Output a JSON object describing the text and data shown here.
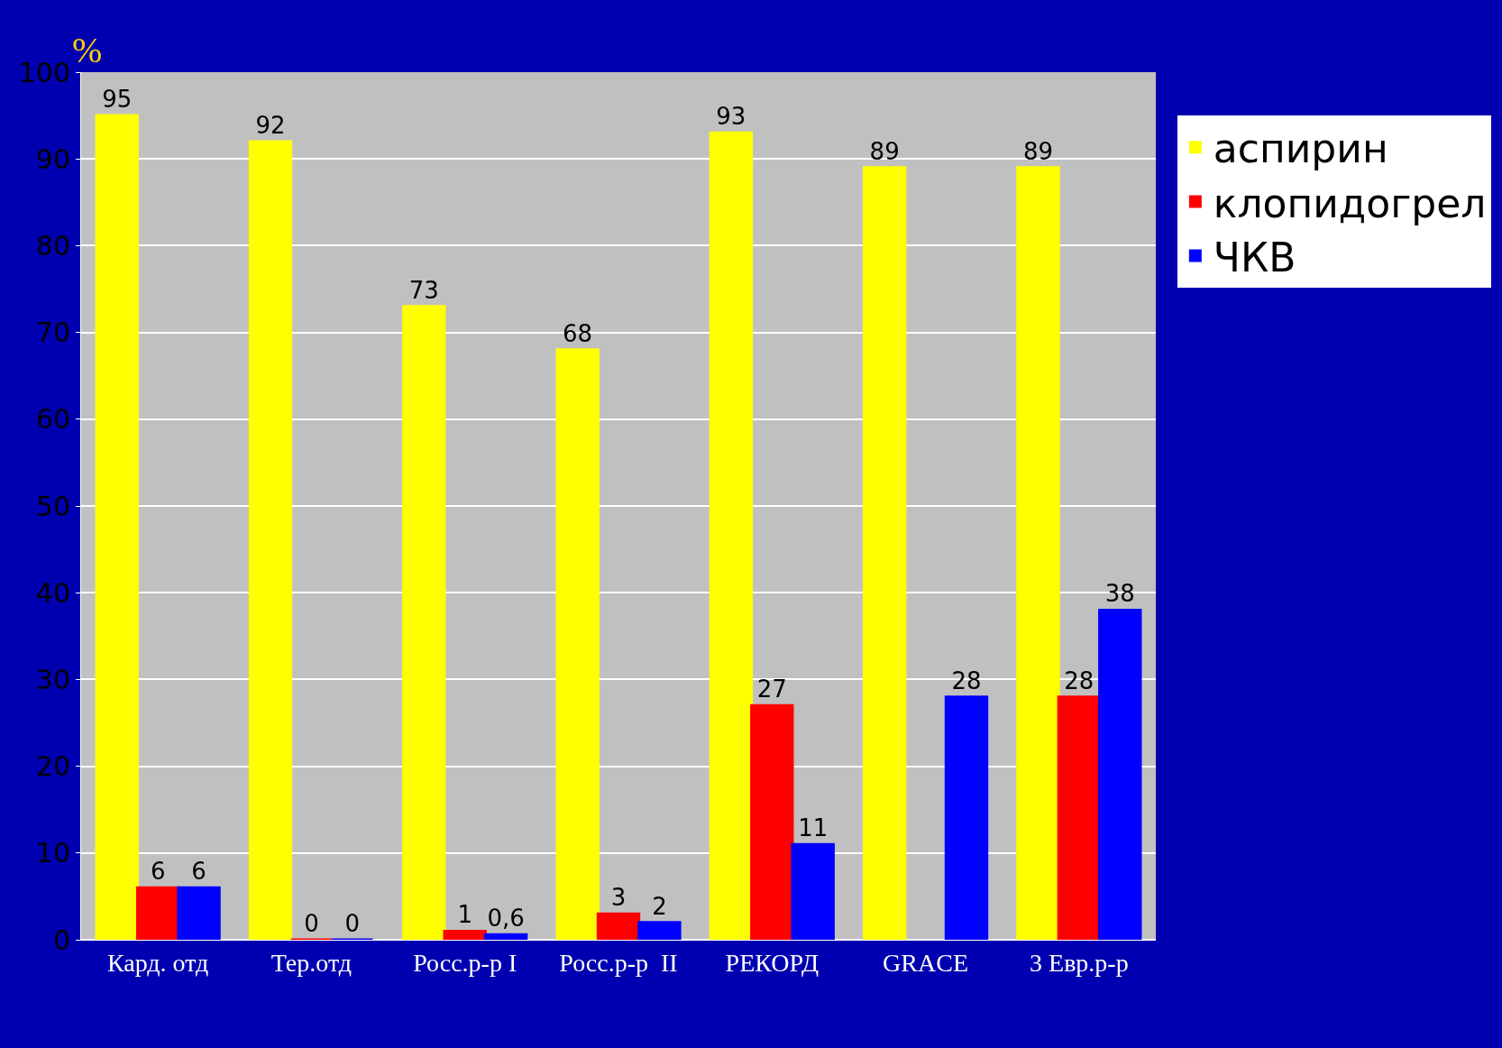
{
  "chart_data": {
    "type": "bar",
    "ylabel": "%",
    "categories": [
      "Кард. отд",
      "Тер.отд",
      "Росс.р-р I",
      "Росс.р-р  II",
      "РЕКОРД",
      "GRACE",
      "3 Евр.р-р"
    ],
    "series": [
      {
        "name": "аспирин",
        "color": "#ffff00",
        "values": [
          95,
          92,
          73,
          68,
          93,
          89,
          89
        ],
        "value_labels": [
          "95",
          "92",
          "73",
          "68",
          "93",
          "89",
          "89"
        ]
      },
      {
        "name": "клопидогрел",
        "color": "#ff0000",
        "values": [
          6,
          0,
          1,
          3,
          27,
          null,
          28
        ],
        "value_labels": [
          "6",
          "0",
          "1",
          "3",
          "27",
          null,
          "28"
        ]
      },
      {
        "name": "ЧКВ",
        "color": "#0000ff",
        "values": [
          6,
          0,
          0.6,
          2,
          11,
          28,
          38
        ],
        "value_labels": [
          "6",
          "0",
          "0,6",
          "2",
          "11",
          "28",
          "38"
        ]
      }
    ],
    "ylim": [
      0,
      100
    ],
    "yticks": [
      0,
      10,
      20,
      30,
      40,
      50,
      60,
      70,
      80,
      90,
      100
    ],
    "grid": "y",
    "legend": "right"
  }
}
